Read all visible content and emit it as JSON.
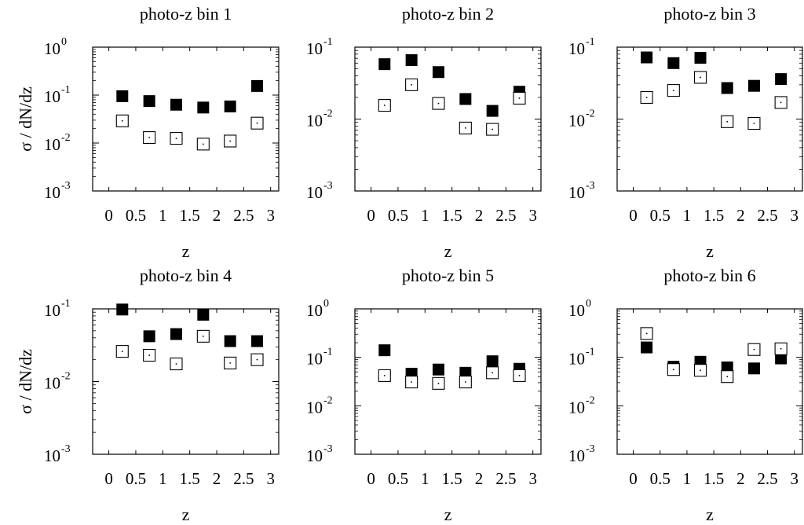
{
  "figure": {
    "ylabel": "σ / dN/dz",
    "xlabel": "z"
  },
  "chart_data": [
    {
      "type": "scatter",
      "title": "photo-z bin 1",
      "xlabel": "z",
      "ylabel": "σ / dN/dz",
      "yscale": "log",
      "xlim": [
        -0.3,
        3.15
      ],
      "ylim": [
        0.001,
        1
      ],
      "xticks": [
        "0",
        "0.5",
        "1",
        "1.5",
        "2",
        "2.5",
        "3"
      ],
      "ytick_base": "10",
      "ytick_exps": [
        "0",
        "-1",
        "-2",
        "-3"
      ],
      "series": [
        {
          "marker": "filled-square",
          "x": [
            0.25,
            0.75,
            1.25,
            1.75,
            2.25,
            2.75
          ],
          "y": [
            0.095,
            0.075,
            0.063,
            0.055,
            0.058,
            0.155
          ]
        },
        {
          "marker": "open-square",
          "x": [
            0.25,
            0.75,
            1.25,
            1.75,
            2.25,
            2.75
          ],
          "y": [
            0.029,
            0.013,
            0.0125,
            0.0095,
            0.011,
            0.026
          ]
        }
      ]
    },
    {
      "type": "scatter",
      "title": "photo-z bin 2",
      "xlabel": "z",
      "ylabel": "",
      "yscale": "log",
      "xlim": [
        -0.3,
        3.15
      ],
      "ylim": [
        0.001,
        0.1
      ],
      "xticks": [
        "0",
        "0.5",
        "1",
        "1.5",
        "2",
        "2.5",
        "3"
      ],
      "ytick_base": "10",
      "ytick_exps": [
        "-1",
        "-2",
        "-3"
      ],
      "series": [
        {
          "marker": "filled-square",
          "x": [
            0.25,
            0.75,
            1.25,
            1.75,
            2.25,
            2.75
          ],
          "y": [
            0.058,
            0.066,
            0.045,
            0.019,
            0.013,
            0.024
          ]
        },
        {
          "marker": "open-square",
          "x": [
            0.25,
            0.75,
            1.25,
            1.75,
            2.25,
            2.75
          ],
          "y": [
            0.0155,
            0.03,
            0.0165,
            0.0075,
            0.0072,
            0.0195
          ]
        }
      ]
    },
    {
      "type": "scatter",
      "title": "photo-z bin 3",
      "xlabel": "z",
      "ylabel": "",
      "yscale": "log",
      "xlim": [
        -0.3,
        3.15
      ],
      "ylim": [
        0.001,
        0.1
      ],
      "xticks": [
        "0",
        "0.5",
        "1",
        "1.5",
        "2",
        "2.5",
        "3"
      ],
      "ytick_base": "10",
      "ytick_exps": [
        "-1",
        "-2",
        "-3"
      ],
      "series": [
        {
          "marker": "filled-square",
          "x": [
            0.25,
            0.75,
            1.25,
            1.75,
            2.25,
            2.75
          ],
          "y": [
            0.072,
            0.06,
            0.071,
            0.027,
            0.029,
            0.036
          ]
        },
        {
          "marker": "open-square",
          "x": [
            0.25,
            0.75,
            1.25,
            1.75,
            2.25,
            2.75
          ],
          "y": [
            0.02,
            0.025,
            0.038,
            0.0092,
            0.0087,
            0.017
          ]
        }
      ]
    },
    {
      "type": "scatter",
      "title": "photo-z bin 4",
      "xlabel": "z",
      "ylabel": "σ / dN/dz",
      "yscale": "log",
      "xlim": [
        -0.3,
        3.15
      ],
      "ylim": [
        0.001,
        0.1
      ],
      "xticks": [
        "0",
        "0.5",
        "1",
        "1.5",
        "2",
        "2.5",
        "3"
      ],
      "ytick_base": "10",
      "ytick_exps": [
        "-1",
        "-2",
        "-3"
      ],
      "series": [
        {
          "marker": "filled-square",
          "x": [
            0.25,
            0.75,
            1.25,
            1.75,
            2.25,
            2.75
          ],
          "y": [
            0.098,
            0.042,
            0.045,
            0.083,
            0.036,
            0.036
          ]
        },
        {
          "marker": "open-square",
          "x": [
            0.25,
            0.75,
            1.25,
            1.75,
            2.25,
            2.75
          ],
          "y": [
            0.026,
            0.023,
            0.0175,
            0.042,
            0.018,
            0.02
          ]
        }
      ]
    },
    {
      "type": "scatter",
      "title": "photo-z bin 5",
      "xlabel": "z",
      "ylabel": "",
      "yscale": "log",
      "xlim": [
        -0.3,
        3.15
      ],
      "ylim": [
        0.001,
        1
      ],
      "xticks": [
        "0",
        "0.5",
        "1",
        "1.5",
        "2",
        "2.5",
        "3"
      ],
      "ytick_base": "10",
      "ytick_exps": [
        "0",
        "-1",
        "-2",
        "-3"
      ],
      "series": [
        {
          "marker": "filled-square",
          "x": [
            0.25,
            0.75,
            1.25,
            1.75,
            2.25,
            2.75
          ],
          "y": [
            0.14,
            0.046,
            0.056,
            0.048,
            0.083,
            0.058
          ]
        },
        {
          "marker": "open-square",
          "x": [
            0.25,
            0.75,
            1.25,
            1.75,
            2.25,
            2.75
          ],
          "y": [
            0.042,
            0.031,
            0.029,
            0.031,
            0.048,
            0.042
          ]
        }
      ]
    },
    {
      "type": "scatter",
      "title": "photo-z bin 6",
      "xlabel": "z",
      "ylabel": "",
      "yscale": "log",
      "xlim": [
        -0.3,
        3.15
      ],
      "ylim": [
        0.001,
        1
      ],
      "xticks": [
        "0",
        "0.5",
        "1",
        "1.5",
        "2",
        "2.5",
        "3"
      ],
      "ytick_base": "10",
      "ytick_exps": [
        "0",
        "-1",
        "-2",
        "-3"
      ],
      "series": [
        {
          "marker": "filled-square",
          "x": [
            0.25,
            0.75,
            1.25,
            1.75,
            2.25,
            2.75
          ],
          "y": [
            0.16,
            0.064,
            0.081,
            0.062,
            0.059,
            0.095
          ]
        },
        {
          "marker": "open-square",
          "x": [
            0.25,
            0.75,
            1.25,
            1.75,
            2.25,
            2.75
          ],
          "y": [
            0.31,
            0.056,
            0.054,
            0.04,
            0.145,
            0.15
          ]
        }
      ]
    }
  ]
}
